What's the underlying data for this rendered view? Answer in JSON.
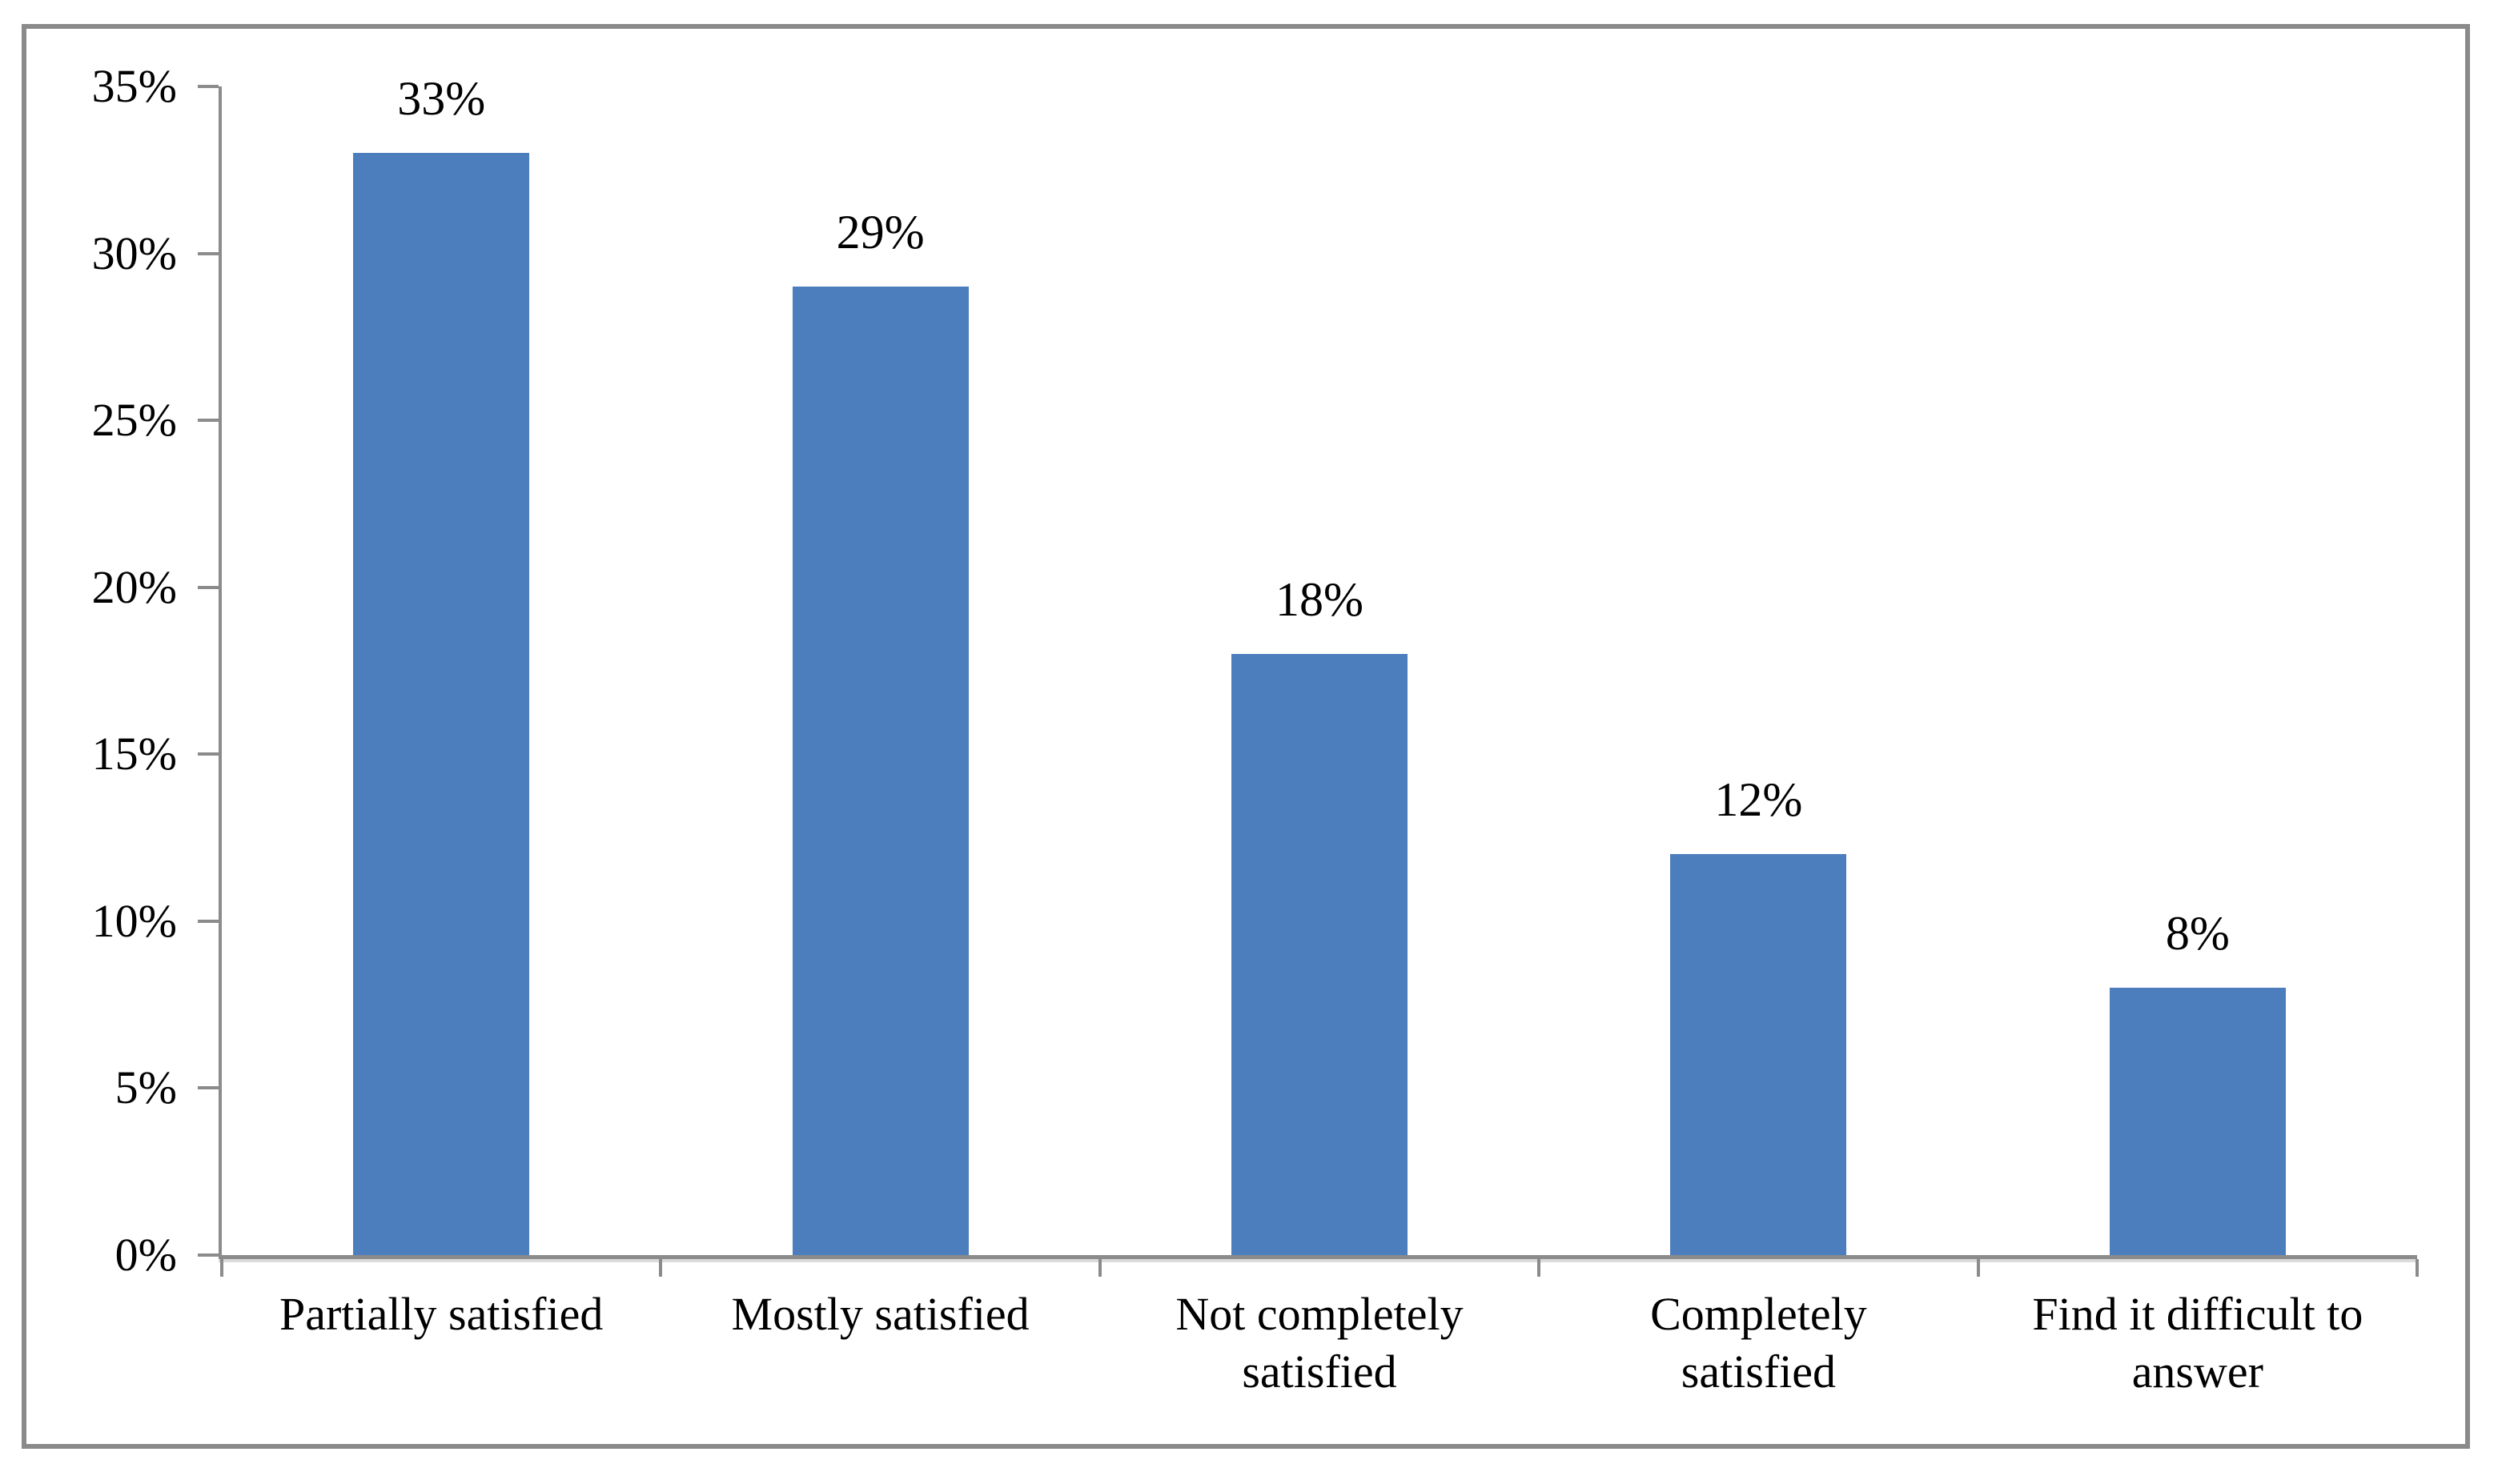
{
  "chart_data": {
    "type": "bar",
    "title": "",
    "xlabel": "",
    "ylabel": "",
    "categories": [
      "Partially satisfied",
      "Mostly satisfied",
      "Not completely\nsatisfied",
      "Completely\nsatisfied",
      "Find it difficult to\nanswer"
    ],
    "values": [
      33,
      29,
      18,
      12,
      8
    ],
    "value_labels": [
      "33%",
      "29%",
      "18%",
      "12%",
      "8%"
    ],
    "ylim": [
      0,
      35
    ],
    "y_ticks": [
      {
        "value": 0,
        "label": "0%"
      },
      {
        "value": 5,
        "label": "5%"
      },
      {
        "value": 10,
        "label": "10%"
      },
      {
        "value": 15,
        "label": "15%"
      },
      {
        "value": 20,
        "label": "20%"
      },
      {
        "value": 25,
        "label": "25%"
      },
      {
        "value": 30,
        "label": "30%"
      },
      {
        "value": 35,
        "label": "35%"
      }
    ],
    "grid": false,
    "legend": null,
    "colors": {
      "bar_fill": "#4C7EBE",
      "axis_line": "#8B8B8B",
      "frame_border": "#8A8A8A",
      "label_text": "#000000",
      "background": "#FFFFFF"
    }
  }
}
